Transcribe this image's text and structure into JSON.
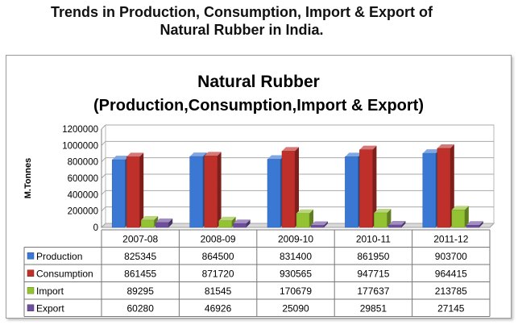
{
  "page": {
    "title_line1": "Trends in Production, Consumption, Import & Export of",
    "title_line2": "Natural Rubber in India."
  },
  "chart_data": {
    "type": "bar",
    "title": "Natural Rubber",
    "subtitle": "(Production,Consumption,Import & Export)",
    "ylabel": "M.Tonnes",
    "xlabel": "",
    "ylim": [
      0,
      1200000
    ],
    "yticks": [
      "0",
      "200000",
      "400000",
      "600000",
      "800000",
      "1000000",
      "1200000"
    ],
    "grid": true,
    "legend_placement": "data-table",
    "categories": [
      "2007-08",
      "2008-09",
      "2009-10",
      "2010-11",
      "2011-12"
    ],
    "series": [
      {
        "name": "Production",
        "color": "#3a78d4",
        "values": [
          825345,
          864500,
          831400,
          861950,
          903700
        ]
      },
      {
        "name": "Consumption",
        "color": "#c0302a",
        "values": [
          861455,
          871720,
          930565,
          947715,
          964415
        ]
      },
      {
        "name": "Import",
        "color": "#93c233",
        "values": [
          89295,
          81545,
          170679,
          177637,
          213785
        ]
      },
      {
        "name": "Export",
        "color": "#6f4f9c",
        "values": [
          60280,
          46926,
          25090,
          29851,
          27145
        ]
      }
    ]
  }
}
